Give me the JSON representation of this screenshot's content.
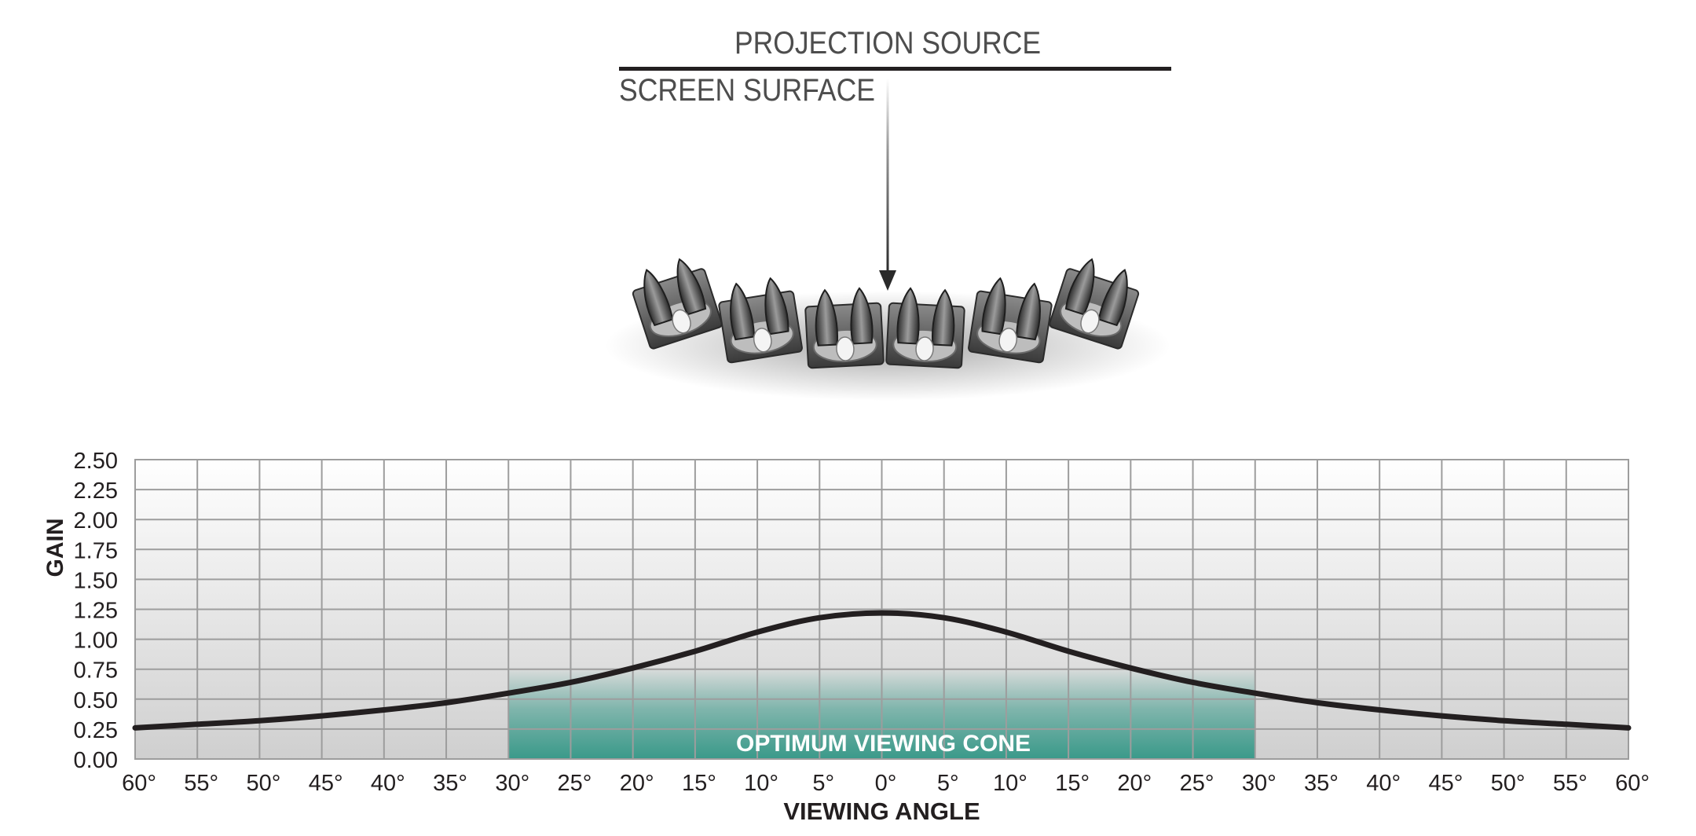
{
  "diagram": {
    "projection_label": "PROJECTION SOURCE",
    "screen_label": "SCREEN SURFACE",
    "seat_count": 6
  },
  "chart_data": {
    "type": "line",
    "title": "",
    "xlabel": "VIEWING ANGLE",
    "ylabel": "GAIN",
    "xlim": [
      -60,
      60
    ],
    "ylim": [
      0,
      2.5
    ],
    "x_tick_step": 5,
    "x_tick_labels": [
      "60°",
      "55°",
      "50°",
      "45°",
      "40°",
      "35°",
      "30°",
      "25°",
      "20°",
      "15°",
      "10°",
      "5°",
      "0°",
      "5°",
      "10°",
      "15°",
      "20°",
      "25°",
      "30°",
      "35°",
      "40°",
      "45°",
      "50°",
      "55°",
      "60°"
    ],
    "y_tick_labels": [
      "2.50",
      "2.25",
      "2.00",
      "1.75",
      "1.50",
      "1.25",
      "1.00",
      "0.75",
      "0.50",
      "0.25",
      "0.00"
    ],
    "y_ticks": [
      2.5,
      2.25,
      2.0,
      1.75,
      1.5,
      1.25,
      1.0,
      0.75,
      0.5,
      0.25,
      0.0
    ],
    "grid": true,
    "series": [
      {
        "x": [
          -60,
          -55,
          -50,
          -45,
          -40,
          -35,
          -30,
          -25,
          -20,
          -15,
          -10,
          -5,
          0,
          5,
          10,
          15,
          20,
          25,
          30,
          35,
          40,
          45,
          50,
          55,
          60
        ],
        "values": [
          0.26,
          0.29,
          0.32,
          0.36,
          0.41,
          0.47,
          0.55,
          0.64,
          0.76,
          0.9,
          1.06,
          1.18,
          1.22,
          1.18,
          1.06,
          0.9,
          0.76,
          0.64,
          0.55,
          0.47,
          0.41,
          0.36,
          0.32,
          0.29,
          0.26
        ]
      }
    ],
    "highlight_region": {
      "x_range": [
        -30,
        30
      ],
      "label": "OPTIMUM VIEWING CONE",
      "color": "#3a9a8a"
    },
    "colors": {
      "curve": "#231f20",
      "grid": "#9d9d9d",
      "text": "#231f20",
      "accent_label": "#ffffff"
    }
  }
}
